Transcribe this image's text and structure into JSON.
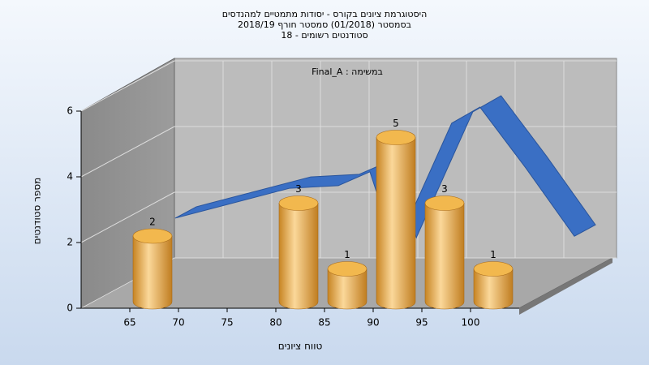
{
  "chart_data": {
    "type": "bar3d",
    "title": [
      "היסטוגרמת ציונים בקורס - יסודות מתמטיים למהנדסים",
      "בסמסטר (01/2018) סמסטר חורף 2018/19",
      "סטודנטים רשומים - 18"
    ],
    "subtitle": "Final_A : במשימה",
    "x_label": "טווח ציונים",
    "y_label": "מספר סטודנטים",
    "x": [
      65,
      80,
      85,
      90,
      95,
      100
    ],
    "values": [
      2,
      3,
      1,
      5,
      3,
      1
    ],
    "color": "#e7a43c",
    "curve": {
      "x": [
        66,
        77.75,
        82.75,
        86,
        88.6,
        94.4,
        97.3,
        102,
        107
      ],
      "values": [
        2.15,
        3.06,
        3.14,
        3.56,
        1.21,
        5.04,
        5.53,
        3.68,
        1.6
      ],
      "color": "#3a6fc4"
    },
    "xlim": [
      60,
      105
    ],
    "xticks": [
      65,
      70,
      75,
      80,
      85,
      90,
      95,
      100
    ],
    "ylim": [
      0,
      6
    ],
    "yticks": [
      0,
      2,
      4,
      6
    ],
    "grid": true
  }
}
